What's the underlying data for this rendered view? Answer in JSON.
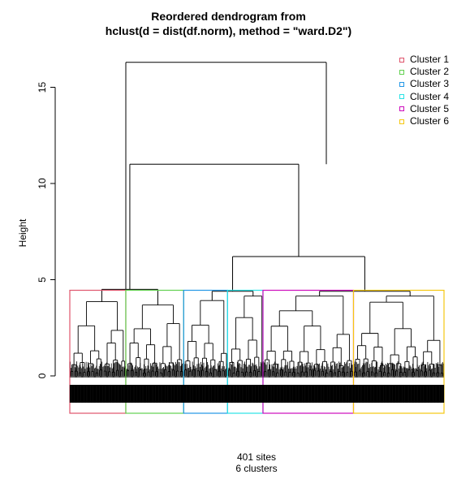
{
  "chart_data": {
    "type": "dendrogram",
    "title_line1": "Reordered dendrogram from",
    "title_line2": "hclust(d = dist(df.norm), method = \"ward.D2\")",
    "ylabel": "Height",
    "subtitle_line1": "401 sites",
    "subtitle_line2": "6 clusters",
    "ylim": [
      0,
      17
    ],
    "yticks": [
      0,
      5,
      10,
      15
    ],
    "merges": [
      {
        "left": 4.5,
        "right": 4.3,
        "height": 16.3
      },
      {
        "left": 2.2,
        "right": 4.4,
        "height": 4.5
      },
      {
        "left": 4.5,
        "right": 3.5,
        "height": 11.0
      },
      {
        "left": 4.5,
        "right": 3.0,
        "height": 6.2
      }
    ],
    "clusters": [
      {
        "name": "Cluster 1",
        "color": "#df536b",
        "height": 4.45,
        "size": 60
      },
      {
        "name": "Cluster 2",
        "color": "#61d04f",
        "height": 4.45,
        "size": 62
      },
      {
        "name": "Cluster 3",
        "color": "#2297e6",
        "height": 4.45,
        "size": 47
      },
      {
        "name": "Cluster 4",
        "color": "#28e2e5",
        "height": 4.45,
        "size": 38
      },
      {
        "name": "Cluster 5",
        "color": "#cd0bbc",
        "height": 4.45,
        "size": 97
      },
      {
        "name": "Cluster 6",
        "color": "#f5c710",
        "height": 4.45,
        "size": 97
      }
    ],
    "legend_position": "top-right"
  }
}
